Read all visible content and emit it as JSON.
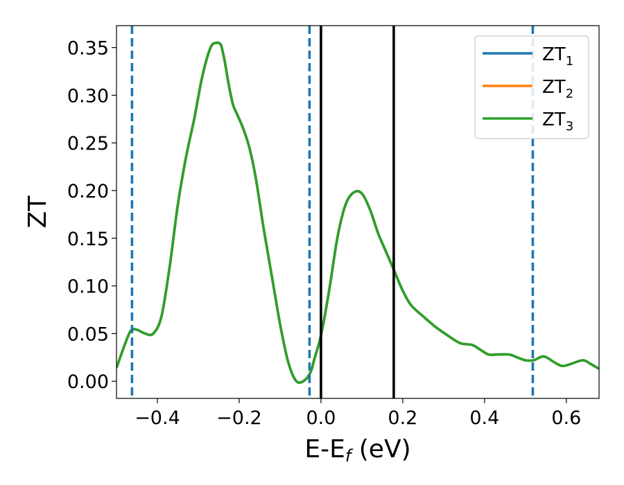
{
  "chart_data": {
    "type": "line",
    "xlabel": {
      "base": "E-E",
      "sub": "f",
      "suffix": " (eV)"
    },
    "ylabel": "ZT",
    "xlim": [
      -0.5,
      0.68
    ],
    "ylim": [
      -0.018,
      0.373
    ],
    "x_ticks": [
      -0.4,
      -0.2,
      0.0,
      0.2,
      0.4,
      0.6
    ],
    "x_tick_labels": [
      "−0.4",
      "−0.2",
      "0.0",
      "0.2",
      "0.4",
      "0.6"
    ],
    "y_ticks": [
      0.0,
      0.05,
      0.1,
      0.15,
      0.2,
      0.25,
      0.3,
      0.35
    ],
    "y_tick_labels": [
      "0.00",
      "0.05",
      "0.10",
      "0.15",
      "0.20",
      "0.25",
      "0.30",
      "0.35"
    ],
    "legend_position": "top-right",
    "series": [
      {
        "name": "ZT",
        "name_sub": "1",
        "color": "#1f77b4"
      },
      {
        "name": "ZT",
        "name_sub": "2",
        "color": "#ff7f0e"
      },
      {
        "name": "ZT",
        "name_sub": "3",
        "color": "#2ca02c"
      }
    ],
    "curve": {
      "note_series": "All three series coincide; the topmost visible curve is ZT3.",
      "x": [
        -0.5,
        -0.48,
        -0.465,
        -0.45,
        -0.43,
        -0.41,
        -0.39,
        -0.37,
        -0.35,
        -0.33,
        -0.31,
        -0.29,
        -0.27,
        -0.255,
        -0.245,
        -0.24,
        -0.235,
        -0.225,
        -0.215,
        -0.205,
        -0.19,
        -0.175,
        -0.16,
        -0.14,
        -0.12,
        -0.1,
        -0.08,
        -0.06,
        -0.04,
        -0.025,
        -0.015,
        0.0,
        0.02,
        0.04,
        0.06,
        0.08,
        0.1,
        0.12,
        0.14,
        0.16,
        0.18,
        0.2,
        0.22,
        0.25,
        0.28,
        0.31,
        0.34,
        0.37,
        0.39,
        0.41,
        0.43,
        0.46,
        0.48,
        0.5,
        0.52,
        0.545,
        0.57,
        0.59,
        0.61,
        0.64,
        0.66,
        0.68
      ],
      "y": [
        0.014,
        0.038,
        0.053,
        0.054,
        0.05,
        0.05,
        0.068,
        0.12,
        0.185,
        0.235,
        0.275,
        0.32,
        0.35,
        0.355,
        0.353,
        0.345,
        0.335,
        0.31,
        0.29,
        0.28,
        0.265,
        0.245,
        0.215,
        0.16,
        0.11,
        0.06,
        0.02,
        0.0,
        0.001,
        0.01,
        0.025,
        0.048,
        0.095,
        0.15,
        0.185,
        0.198,
        0.197,
        0.18,
        0.155,
        0.135,
        0.115,
        0.095,
        0.08,
        0.068,
        0.057,
        0.048,
        0.04,
        0.038,
        0.033,
        0.028,
        0.028,
        0.028,
        0.025,
        0.022,
        0.022,
        0.026,
        0.02,
        0.016,
        0.018,
        0.022,
        0.018,
        0.013
      ]
    },
    "vlines_dashed": {
      "x": [
        -0.462,
        -0.028,
        0.518
      ],
      "color": "#1f77b4"
    },
    "vlines_solid": {
      "x": [
        0.0,
        0.178
      ],
      "color": "#000000"
    }
  }
}
